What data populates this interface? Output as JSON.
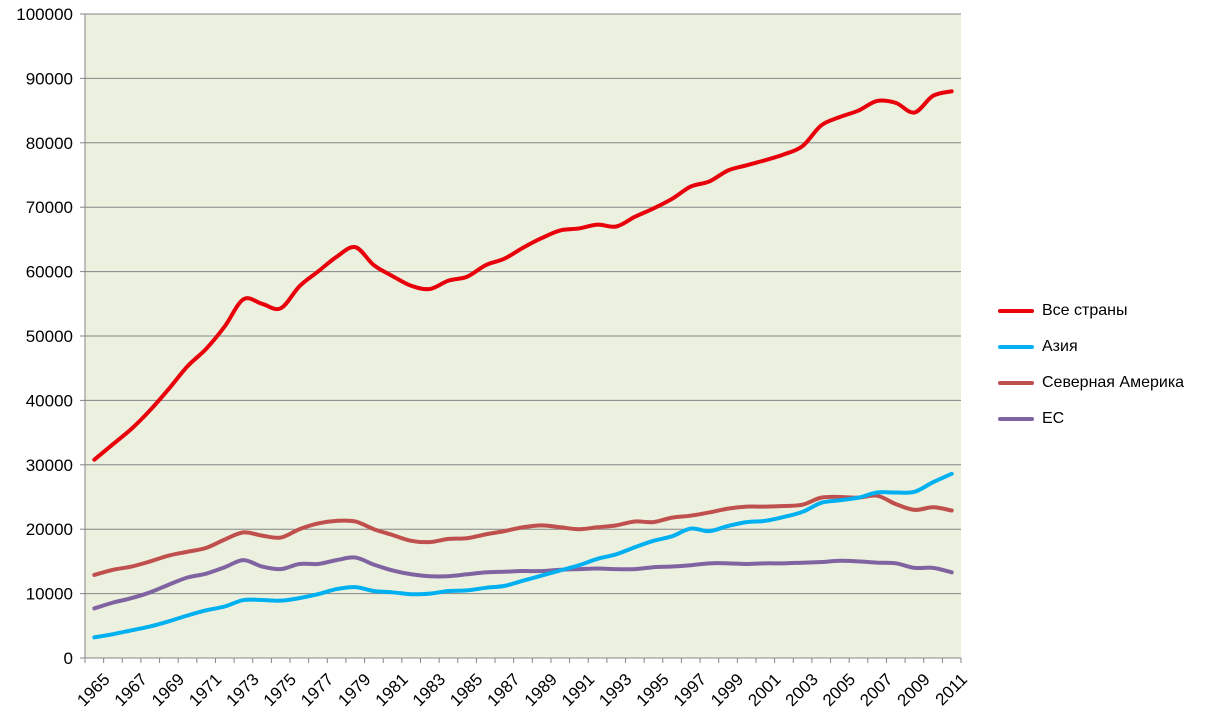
{
  "chart_data": {
    "type": "line",
    "title": "",
    "xlabel": "",
    "ylabel": "",
    "ylim": [
      0,
      100000
    ],
    "y_ticks": [
      "0",
      "10000",
      "20000",
      "30000",
      "40000",
      "50000",
      "60000",
      "70000",
      "80000",
      "90000",
      "100000"
    ],
    "x_tick_labels": [
      "1965",
      "1967",
      "1969",
      "1971",
      "1973",
      "1975",
      "1977",
      "1979",
      "1981",
      "1983",
      "1985",
      "1987",
      "1989",
      "1991",
      "1993",
      "1995",
      "1997",
      "1999",
      "2001",
      "2003",
      "2005",
      "2007",
      "2009",
      "2011"
    ],
    "x": [
      1965,
      1966,
      1967,
      1968,
      1969,
      1970,
      1971,
      1972,
      1973,
      1974,
      1975,
      1976,
      1977,
      1978,
      1979,
      1980,
      1981,
      1982,
      1983,
      1984,
      1985,
      1986,
      1987,
      1988,
      1989,
      1990,
      1991,
      1992,
      1993,
      1994,
      1995,
      1996,
      1997,
      1998,
      1999,
      2000,
      2001,
      2002,
      2003,
      2004,
      2005,
      2006,
      2007,
      2008,
      2009,
      2010,
      2011
    ],
    "grid": true,
    "background": "#EBF1DE",
    "legend_position": "right",
    "series": [
      {
        "name": "Все страны",
        "color": "#E8000B",
        "values": [
          30800,
          33200,
          35600,
          38500,
          41800,
          45300,
          48000,
          51500,
          55700,
          55000,
          54300,
          57700,
          60000,
          62300,
          63800,
          61000,
          59300,
          57800,
          57300,
          58600,
          59200,
          61000,
          62000,
          63700,
          65200,
          66400,
          66700,
          67300,
          67000,
          68500,
          69800,
          71300,
          73200,
          74000,
          75700,
          76500,
          77300,
          78200,
          79500,
          82700,
          84000,
          85000,
          86500,
          86200,
          84700,
          87300,
          88000
        ]
      },
      {
        "name": "Азия",
        "color": "#00B0F0",
        "values": [
          3200,
          3700,
          4300,
          4900,
          5700,
          6600,
          7400,
          8000,
          9000,
          9000,
          8900,
          9300,
          9900,
          10700,
          11000,
          10400,
          10200,
          9900,
          10000,
          10400,
          10500,
          10900,
          11200,
          12000,
          12800,
          13600,
          14400,
          15400,
          16100,
          17200,
          18200,
          18900,
          20100,
          19700,
          20500,
          21100,
          21300,
          21900,
          22700,
          24100,
          24500,
          24900,
          25700,
          25700,
          25800,
          27300,
          28600
        ]
      },
      {
        "name": "Северная Америка",
        "color": "#C0504D",
        "values": [
          12900,
          13700,
          14200,
          15000,
          15900,
          16500,
          17100,
          18400,
          19500,
          19000,
          18700,
          20000,
          20900,
          21300,
          21200,
          20000,
          19100,
          18200,
          18000,
          18500,
          18600,
          19200,
          19700,
          20300,
          20600,
          20300,
          20000,
          20300,
          20600,
          21200,
          21100,
          21800,
          22100,
          22600,
          23200,
          23500,
          23500,
          23600,
          23800,
          24900,
          25000,
          24900,
          25200,
          23900,
          23000,
          23400,
          22900
        ]
      },
      {
        "name": "ЕС",
        "color": "#8064A2",
        "values": [
          7700,
          8600,
          9300,
          10200,
          11400,
          12500,
          13100,
          14100,
          15200,
          14200,
          13800,
          14600,
          14600,
          15200,
          15600,
          14500,
          13600,
          13000,
          12700,
          12700,
          13000,
          13300,
          13400,
          13500,
          13500,
          13700,
          13800,
          13900,
          13800,
          13800,
          14100,
          14200,
          14400,
          14700,
          14700,
          14600,
          14700,
          14700,
          14800,
          14900,
          15100,
          15000,
          14800,
          14700,
          14000,
          14000,
          13300
        ]
      }
    ]
  }
}
